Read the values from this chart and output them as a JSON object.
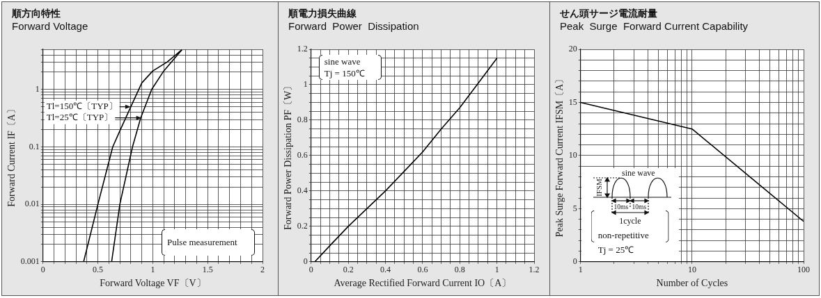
{
  "chart_data": [
    {
      "type": "line",
      "title": "順方向特性",
      "subtitle": "Forward Voltage",
      "xlabel": "Forward Voltage VF〔V〕",
      "ylabel": "Forward Current IF〔A〕",
      "log": "y",
      "grid": true,
      "xlim": [
        0,
        2
      ],
      "ylim": [
        0.001,
        5
      ],
      "xticks": [
        0,
        {
          "value": 0.1,
          "label": null
        },
        {
          "value": 0.2,
          "label": null
        },
        {
          "value": 0.3,
          "label": null
        },
        {
          "value": 0.4,
          "label": null
        },
        0.5,
        {
          "value": 0.6,
          "label": null
        },
        {
          "value": 0.7,
          "label": null
        },
        {
          "value": 0.8,
          "label": null
        },
        {
          "value": 0.9,
          "label": null
        },
        1,
        {
          "value": 1.1,
          "label": null
        },
        {
          "value": 1.2,
          "label": null
        },
        {
          "value": 1.3,
          "label": null
        },
        {
          "value": 1.4,
          "label": null
        },
        1.5,
        {
          "value": 1.6,
          "label": null
        },
        {
          "value": 1.7,
          "label": null
        },
        {
          "value": 1.8,
          "label": null
        },
        {
          "value": 1.9,
          "label": null
        },
        2
      ],
      "yticks": [
        0.001,
        {
          "value": 0.002,
          "label": null
        },
        {
          "value": 0.003,
          "label": null
        },
        {
          "value": 0.004,
          "label": null
        },
        {
          "value": 0.005,
          "label": null
        },
        {
          "value": 0.006,
          "label": null
        },
        {
          "value": 0.007,
          "label": null
        },
        {
          "value": 0.008,
          "label": null
        },
        {
          "value": 0.009,
          "label": null
        },
        0.01,
        {
          "value": 0.02,
          "label": null
        },
        {
          "value": 0.03,
          "label": null
        },
        {
          "value": 0.04,
          "label": null
        },
        {
          "value": 0.05,
          "label": null
        },
        {
          "value": 0.06,
          "label": null
        },
        {
          "value": 0.07,
          "label": null
        },
        {
          "value": 0.08,
          "label": null
        },
        {
          "value": 0.09,
          "label": null
        },
        0.1,
        {
          "value": 0.2,
          "label": null
        },
        {
          "value": 0.3,
          "label": null
        },
        {
          "value": 0.4,
          "label": null
        },
        {
          "value": 0.5,
          "label": null
        },
        {
          "value": 0.6,
          "label": null
        },
        {
          "value": 0.7,
          "label": null
        },
        {
          "value": 0.8,
          "label": null
        },
        {
          "value": 0.9,
          "label": null
        },
        1,
        {
          "value": 2,
          "label": null
        },
        {
          "value": 3,
          "label": null
        },
        {
          "value": 4,
          "label": null
        },
        {
          "value": 5,
          "label": null
        }
      ],
      "series": [
        {
          "color": "#000000",
          "x": [
            0.37,
            0.5,
            0.635,
            0.7,
            0.8,
            0.9,
            1.0,
            1.13,
            1.265
          ],
          "values": [
            0.001,
            0.01,
            0.1,
            0.19,
            0.5,
            1.3,
            2.1,
            3.0,
            4.9
          ]
        },
        {
          "color": "#000000",
          "x": [
            0.625,
            0.7,
            0.815,
            0.89,
            0.99,
            1.1,
            1.265
          ],
          "values": [
            0.001,
            0.01,
            0.1,
            0.32,
            1.0,
            2.1,
            4.9
          ]
        }
      ],
      "annotations": [
        {
          "text": "Tl=150℃〔TYP〕",
          "x": 0.8,
          "y": 0.5
        },
        {
          "text": "Tl=25℃〔TYP〕",
          "x": 0.9,
          "y": 0.32
        },
        "Pulse measurement"
      ]
    },
    {
      "type": "line",
      "title": "順電力損失曲線",
      "subtitle": "Forward  Power  Dissipation",
      "xlabel": "Average Rectified Forward Current IO〔A〕",
      "ylabel": "Forward Power Dissipation PF〔W〕",
      "grid": true,
      "xlim": [
        0,
        1.2
      ],
      "ylim": [
        0,
        1.2
      ],
      "xticks": [
        0,
        {
          "value": 0.05,
          "label": null
        },
        {
          "value": 0.1,
          "label": null
        },
        {
          "value": 0.15,
          "label": null
        },
        0.2,
        {
          "value": 0.25,
          "label": null
        },
        {
          "value": 0.3,
          "label": null
        },
        {
          "value": 0.35,
          "label": null
        },
        0.4,
        {
          "value": 0.45,
          "label": null
        },
        {
          "value": 0.5,
          "label": null
        },
        {
          "value": 0.55,
          "label": null
        },
        0.6,
        {
          "value": 0.65,
          "label": null
        },
        {
          "value": 0.7,
          "label": null
        },
        {
          "value": 0.75,
          "label": null
        },
        0.8,
        {
          "value": 0.85,
          "label": null
        },
        {
          "value": 0.9,
          "label": null
        },
        {
          "value": 0.95,
          "label": null
        },
        1,
        {
          "value": 1.05,
          "label": null
        },
        {
          "value": 1.1,
          "label": null
        },
        {
          "value": 1.15,
          "label": null
        },
        1.2
      ],
      "yticks": [
        0,
        {
          "value": 0.05,
          "label": null
        },
        {
          "value": 0.1,
          "label": null
        },
        {
          "value": 0.15,
          "label": null
        },
        0.2,
        {
          "value": 0.25,
          "label": null
        },
        {
          "value": 0.3,
          "label": null
        },
        {
          "value": 0.35,
          "label": null
        },
        0.4,
        {
          "value": 0.45,
          "label": null
        },
        {
          "value": 0.5,
          "label": null
        },
        {
          "value": 0.55,
          "label": null
        },
        0.6,
        {
          "value": 0.65,
          "label": null
        },
        {
          "value": 0.7,
          "label": null
        },
        {
          "value": 0.75,
          "label": null
        },
        0.8,
        {
          "value": 0.85,
          "label": null
        },
        {
          "value": 0.9,
          "label": null
        },
        {
          "value": 0.95,
          "label": null
        },
        1,
        {
          "value": 1.05,
          "label": null
        },
        {
          "value": 1.1,
          "label": null
        },
        {
          "value": 1.15,
          "label": null
        },
        1.2
      ],
      "series": [
        {
          "color": "#000000",
          "x": [
            0.02,
            0.1,
            0.2,
            0.3,
            0.4,
            0.5,
            0.6,
            0.7,
            0.8,
            0.9,
            1.0
          ],
          "values": [
            0,
            0.09,
            0.2,
            0.3,
            0.4,
            0.51,
            0.62,
            0.75,
            0.87,
            1.01,
            1.15
          ]
        }
      ],
      "annotations": [
        "sine wave",
        "Tj = 150℃"
      ]
    },
    {
      "type": "line",
      "title": "せん頭サージ電流耐量",
      "subtitle": "Peak  Surge  Forward Current Capability",
      "xlabel": "Number of Cycles",
      "ylabel": "Peak Surge Forward Current IFSM〔A〕",
      "log": "x",
      "grid": true,
      "xlim": [
        1,
        100
      ],
      "ylim": [
        0,
        20
      ],
      "xticks": [
        1,
        {
          "value": 2,
          "label": null
        },
        {
          "value": 3,
          "label": null
        },
        {
          "value": 4,
          "label": null
        },
        {
          "value": 5,
          "label": null
        },
        {
          "value": 6,
          "label": null
        },
        {
          "value": 7,
          "label": null
        },
        {
          "value": 8,
          "label": null
        },
        {
          "value": 9,
          "label": null
        },
        10,
        {
          "value": 20,
          "label": null
        },
        {
          "value": 30,
          "label": null
        },
        {
          "value": 40,
          "label": null
        },
        {
          "value": 50,
          "label": null
        },
        {
          "value": 60,
          "label": null
        },
        {
          "value": 70,
          "label": null
        },
        {
          "value": 80,
          "label": null
        },
        {
          "value": 90,
          "label": null
        },
        100
      ],
      "yticks": [
        0,
        {
          "value": 1,
          "label": null
        },
        {
          "value": 2,
          "label": null
        },
        {
          "value": 3,
          "label": null
        },
        {
          "value": 4,
          "label": null
        },
        5,
        {
          "value": 6,
          "label": null
        },
        {
          "value": 7,
          "label": null
        },
        {
          "value": 8,
          "label": null
        },
        {
          "value": 9,
          "label": null
        },
        10,
        {
          "value": 11,
          "label": null
        },
        {
          "value": 12,
          "label": null
        },
        {
          "value": 13,
          "label": null
        },
        {
          "value": 14,
          "label": null
        },
        15,
        {
          "value": 16,
          "label": null
        },
        {
          "value": 17,
          "label": null
        },
        {
          "value": 18,
          "label": null
        },
        {
          "value": 19,
          "label": null
        },
        20
      ],
      "series": [
        {
          "color": "#000000",
          "x": [
            1,
            10,
            100
          ],
          "values": [
            15,
            12.5,
            3.8
          ]
        }
      ],
      "annotations": [
        "sine wave",
        "IFSM",
        "10ms",
        "10ms",
        "1cycle",
        "non-repetitive",
        "Tj = 25℃"
      ]
    }
  ]
}
